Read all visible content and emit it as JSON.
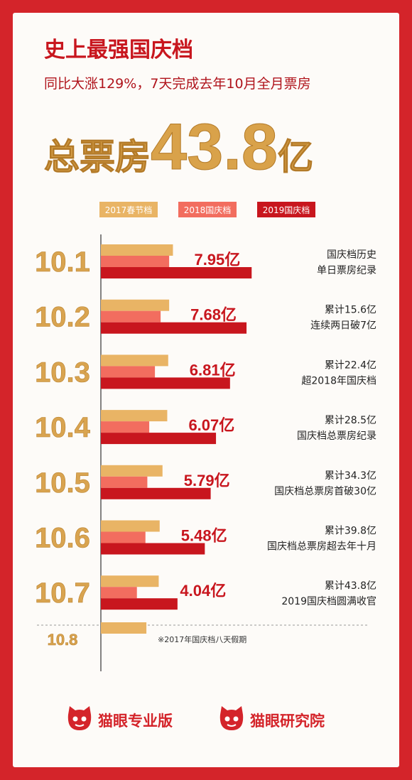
{
  "header": {
    "title": "史上最强国庆档",
    "subtitle": "同比大涨129%，7天完成去年10月全月票房",
    "headline_prefix": "总票房",
    "headline_number": "43.8",
    "headline_unit": "亿"
  },
  "chart_data": {
    "type": "bar",
    "categories": [
      "10.1",
      "10.2",
      "10.3",
      "10.4",
      "10.5",
      "10.6",
      "10.7",
      "10.8"
    ],
    "series": [
      {
        "name": "2017春节档",
        "color": "#e9b465",
        "values": [
          3.8,
          3.6,
          3.55,
          3.5,
          3.25,
          3.1,
          3.05,
          2.4
        ]
      },
      {
        "name": "2018国庆档",
        "color": "#f26d5f",
        "values": [
          3.6,
          3.15,
          2.85,
          2.55,
          2.45,
          2.35,
          1.9,
          null
        ]
      },
      {
        "name": "2019国庆档",
        "color": "#c8161e",
        "values": [
          7.95,
          7.68,
          6.81,
          6.07,
          5.79,
          5.48,
          4.04,
          null
        ],
        "value_labels": [
          "7.95亿",
          "7.68亿",
          "6.81亿",
          "6.07亿",
          "5.79亿",
          "5.48亿",
          "4.04亿",
          null
        ]
      }
    ],
    "annotations": [
      [
        "国庆档历史",
        "单日票房纪录"
      ],
      [
        "累计15.6亿",
        "连续两日破7亿"
      ],
      [
        "累计22.4亿",
        "超2018年国庆档"
      ],
      [
        "累计28.5亿",
        "国庆档总票房纪录"
      ],
      [
        "累计34.3亿",
        "国庆档总票房首破30亿"
      ],
      [
        "累计39.8亿",
        "国庆档总票房超去年十月"
      ],
      [
        "累计43.8亿",
        "2019国庆档圆满收官"
      ]
    ],
    "footnote": "※2017年国庆档八天假期"
  },
  "footer": {
    "logos": [
      "猫眼专业版",
      "猫眼研究院"
    ]
  }
}
